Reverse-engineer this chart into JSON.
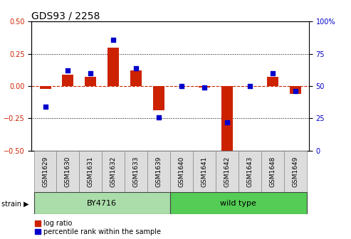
{
  "title": "GDS93 / 2258",
  "samples": [
    "GSM1629",
    "GSM1630",
    "GSM1631",
    "GSM1632",
    "GSM1633",
    "GSM1639",
    "GSM1640",
    "GSM1641",
    "GSM1642",
    "GSM1643",
    "GSM1648",
    "GSM1649"
  ],
  "log_ratio": [
    -0.02,
    0.09,
    0.07,
    0.3,
    0.12,
    -0.19,
    0.0,
    -0.01,
    -0.5,
    0.0,
    0.07,
    -0.06
  ],
  "percentile_rank": [
    34,
    62,
    60,
    86,
    64,
    26,
    50,
    49,
    22,
    50,
    60,
    46
  ],
  "strain_groups": [
    {
      "label": "BY4716",
      "start": 0,
      "end": 5,
      "color": "#aaddaa"
    },
    {
      "label": "wild type",
      "start": 6,
      "end": 11,
      "color": "#55cc55"
    }
  ],
  "ylim_left": [
    -0.5,
    0.5
  ],
  "ylim_right": [
    0,
    100
  ],
  "yticks_left": [
    -0.5,
    -0.25,
    0.0,
    0.25,
    0.5
  ],
  "yticks_right": [
    0,
    25,
    50,
    75,
    100
  ],
  "ytick_right_labels": [
    "0",
    "25",
    "50",
    "75",
    "100%"
  ],
  "dotted_lines": [
    -0.25,
    0.25
  ],
  "bar_color": "#CC2200",
  "scatter_color": "#0000CC",
  "bar_width": 0.5,
  "scatter_size": 18,
  "left_label_color": "#CC2200",
  "right_label_color": "#0000CC",
  "strain_label": "strain",
  "legend_log_ratio": "log ratio",
  "legend_percentile": "percentile rank within the sample",
  "background_color": "#FFFFFF",
  "tick_label_size": 7,
  "title_fontsize": 10,
  "label_fontsize": 6.5,
  "strain_fontsize": 8,
  "legend_fontsize": 7
}
